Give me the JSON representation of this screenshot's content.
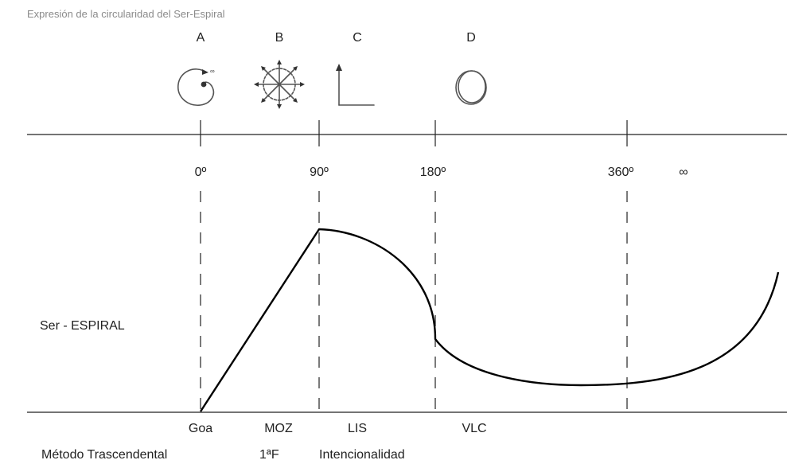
{
  "title": "Expresión de la circularidad del Ser-Espiral",
  "phase_letters": [
    "A",
    "B",
    "C",
    "D"
  ],
  "icons": [
    "spiral-icon",
    "radiating-circle-icon",
    "right-angle-icon",
    "circle-icon"
  ],
  "infinity_mark": "∞",
  "angles": [
    "0º",
    "90º",
    "180º",
    "360º",
    "∞"
  ],
  "curve_label": "Ser - ESPIRAL",
  "segments": [
    "Goa",
    "MOZ",
    "LIS",
    "VLC"
  ],
  "bottom_labels": [
    "Método Trascendental",
    "1ªF",
    "Intencionalidad"
  ]
}
